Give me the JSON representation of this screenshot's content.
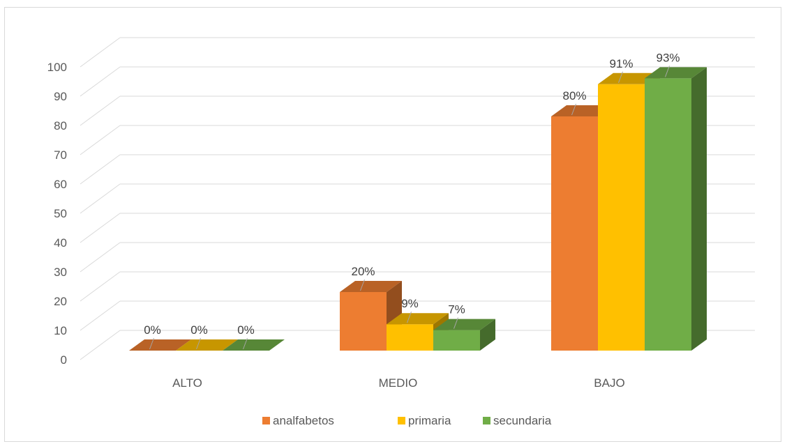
{
  "chart_data": {
    "type": "bar",
    "style": "3d-clustered-column",
    "categories": [
      "ALTO",
      "MEDIO",
      "BAJO"
    ],
    "series": [
      {
        "name": "analfabetos",
        "values": [
          0,
          20,
          80
        ],
        "labels": [
          "0%",
          "20%",
          "80%"
        ],
        "color": "#ED7D31"
      },
      {
        "name": "primaria",
        "values": [
          0,
          9,
          91
        ],
        "labels": [
          "0%",
          "9%",
          "91%"
        ],
        "color": "#FFC000"
      },
      {
        "name": "secundaria",
        "values": [
          0,
          7,
          93
        ],
        "labels": [
          "0%",
          "7%",
          "93%"
        ],
        "color": "#70AD47"
      }
    ],
    "yticks": [
      "0",
      "10",
      "20",
      "30",
      "40",
      "50",
      "60",
      "70",
      "80",
      "90",
      "100"
    ],
    "ylim": [
      0,
      100
    ],
    "grid": true,
    "legend_position": "bottom"
  }
}
